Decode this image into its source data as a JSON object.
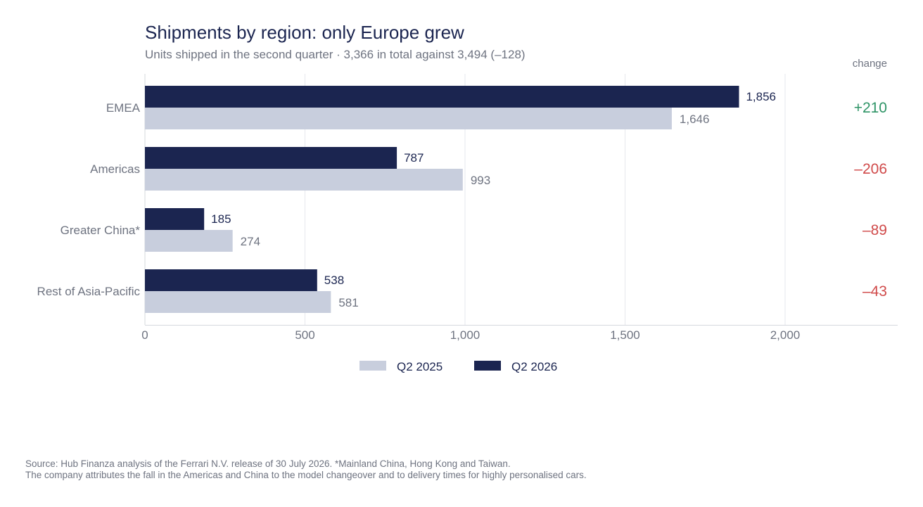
{
  "chart_data": {
    "type": "bar",
    "orientation": "horizontal",
    "title": "Shipments by region: only Europe grew",
    "subtitle": "Units shipped in the second quarter · 3,366 in total against 3,494 (–128)",
    "categories": [
      "EMEA",
      "Americas",
      "Greater China*",
      "Rest of Asia-Pacific"
    ],
    "series": [
      {
        "name": "Q2 2026",
        "values": [
          1856,
          787,
          185,
          538
        ],
        "labels": [
          "1,856",
          "787",
          "185",
          "538"
        ],
        "color": "#1b2550"
      },
      {
        "name": "Q2 2025",
        "values": [
          1646,
          993,
          274,
          581
        ],
        "labels": [
          "1,646",
          "993",
          "274",
          "581"
        ],
        "color": "#c8cedd"
      }
    ],
    "change_header": "change",
    "changes": [
      "+210",
      "–206",
      "–89",
      "–43"
    ],
    "change_colors": {
      "positive": "#2e9466",
      "negative": "#d04a4a"
    },
    "xlim": [
      0,
      2000
    ],
    "xticks": [
      0,
      500,
      1000,
      1500,
      2000
    ],
    "xtick_labels": [
      "0",
      "500",
      "1,000",
      "1,500",
      "2,000"
    ],
    "grid": true,
    "legend": {
      "position": "bottom-center",
      "order": [
        "Q2 2025",
        "Q2 2026"
      ]
    }
  },
  "footnote": {
    "line1": "Source: Hub Finanza analysis of the Ferrari N.V. release of 30 July 2026. *Mainland China, Hong Kong and Taiwan.",
    "line2": "The company attributes the fall in the Americas and China to the model changeover and to delivery times for highly personalised cars."
  }
}
